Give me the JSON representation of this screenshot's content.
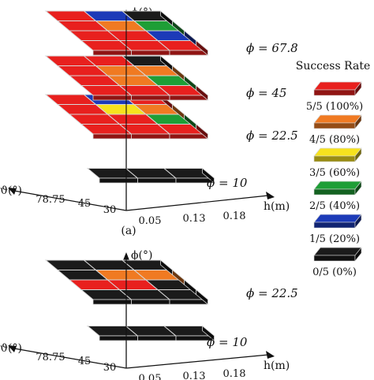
{
  "chart_data": [
    {
      "type": "heatmap",
      "subtitle": "(a)",
      "xlabel": "h(m)",
      "ylabel": "ϕ(°)",
      "zlabel": "ϑ(°)",
      "x_ticks": [
        "0.05",
        "0.13",
        "0.18"
      ],
      "theta_ticks": [
        "30",
        "45",
        "78.75"
      ],
      "layers": [
        {
          "phi": 10,
          "label": "ϕ = 10",
          "cells": [
            [
              "0/5",
              "0/5",
              "0/5"
            ]
          ]
        },
        {
          "phi": 22.5,
          "label": "ϕ = 22.5",
          "cells": [
            [
              "5/5",
              "5/5",
              "5/5"
            ],
            [
              "5/5",
              "5/5",
              "2/5"
            ],
            [
              "5/5",
              "3/5",
              "4/5"
            ],
            [
              "5/5",
              "1/5",
              "5/5"
            ]
          ]
        },
        {
          "phi": 45,
          "label": "ϕ = 45",
          "cells": [
            [
              "5/5",
              "5/5",
              "5/5"
            ],
            [
              "5/5",
              "4/5",
              "2/5"
            ],
            [
              "5/5",
              "4/5",
              "4/5"
            ],
            [
              "5/5",
              "5/5",
              "0/5"
            ]
          ]
        },
        {
          "phi": 67.8,
          "label": "ϕ = 67.8",
          "cells": [
            [
              "5/5",
              "5/5",
              "5/5"
            ],
            [
              "5/5",
              "5/5",
              "1/5"
            ],
            [
              "5/5",
              "4/5",
              "2/5"
            ],
            [
              "5/5",
              "1/5",
              "0/5"
            ]
          ]
        }
      ]
    },
    {
      "type": "heatmap",
      "xlabel": "h(m)",
      "ylabel": "ϕ(°)",
      "zlabel": "ϑ(°)",
      "x_ticks": [
        "0.05",
        "0.13",
        "0.18"
      ],
      "theta_ticks": [
        "30",
        "45",
        "78.75"
      ],
      "layers": [
        {
          "phi": 10,
          "label": "ϕ = 10",
          "cells": [
            [
              "0/5",
              "0/5",
              "0/5"
            ]
          ]
        },
        {
          "phi": 22.5,
          "label": "ϕ = 22.5",
          "cells": [
            [
              "0/5",
              "0/5",
              "0/5"
            ],
            [
              "5/5",
              "5/5",
              "0/5"
            ],
            [
              "0/5",
              "4/5",
              "4/5"
            ],
            [
              "0/5",
              "0/5",
              "0/5"
            ]
          ]
        }
      ]
    }
  ],
  "legend": {
    "title": "Success Rate",
    "items": [
      {
        "label": "5/5 (100%)",
        "color": "#e8201e"
      },
      {
        "label": "4/5 (80%)",
        "color": "#f07a22"
      },
      {
        "label": "3/5 (60%)",
        "color": "#f6e21e"
      },
      {
        "label": "2/5 (40%)",
        "color": "#1e9e36"
      },
      {
        "label": "1/5 (20%)",
        "color": "#1c3ab8"
      },
      {
        "label": "0/5 (0%)",
        "color": "#1b1b1b"
      }
    ]
  }
}
